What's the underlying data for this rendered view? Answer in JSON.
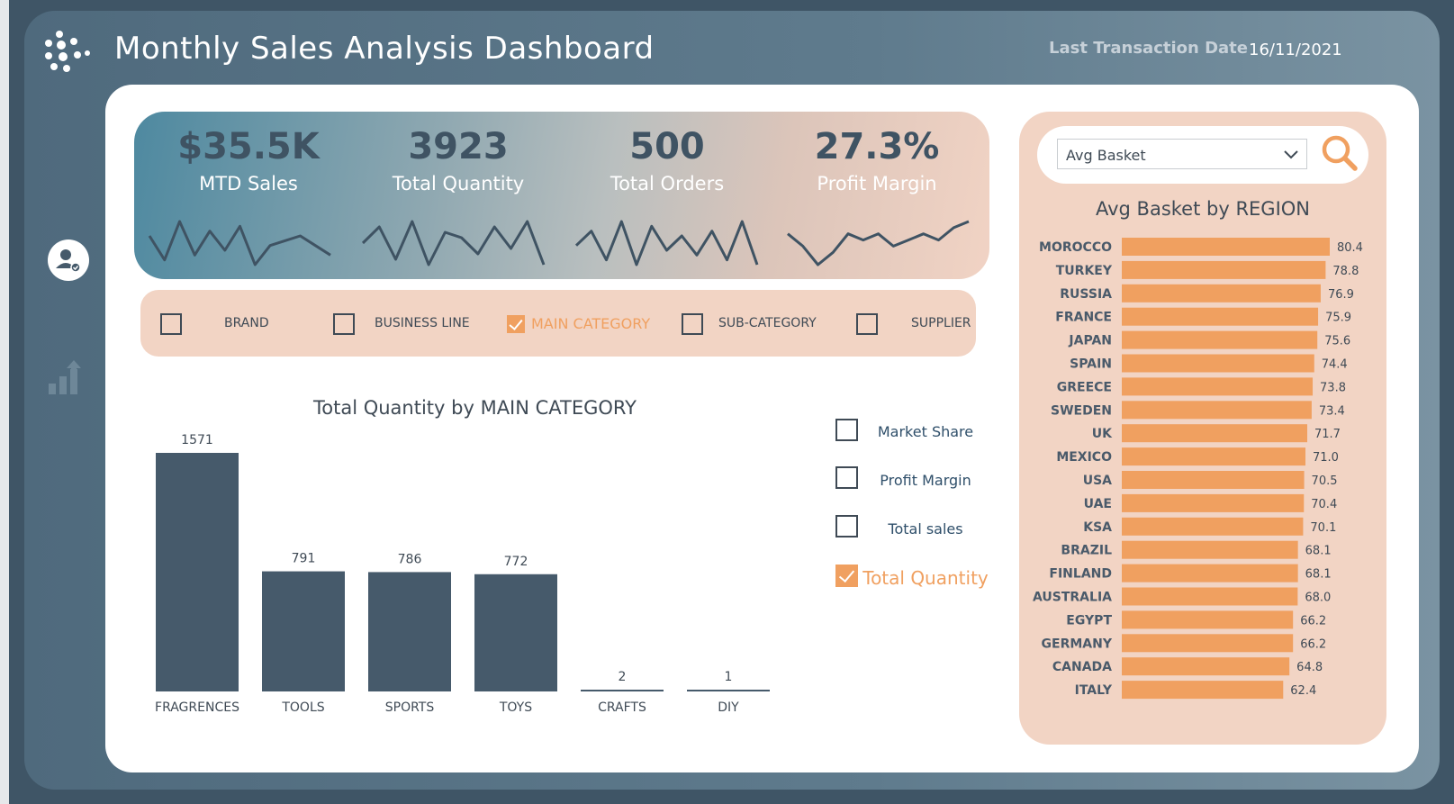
{
  "header": {
    "title": "Monthly Sales Analysis Dashboard",
    "last_transaction_label": "Last Transaction Date",
    "last_transaction_value": "16/11/2021"
  },
  "kpis": [
    {
      "value": "$35.5K",
      "label": "MTD Sales",
      "spark": [
        6,
        1,
        9,
        2,
        7,
        3,
        8,
        0,
        4,
        5,
        6,
        4,
        2
      ]
    },
    {
      "value": "3923",
      "label": "Total Quantity",
      "spark": [
        5,
        8,
        2,
        9,
        1,
        7,
        6,
        3,
        8,
        4,
        9,
        1
      ]
    },
    {
      "value": "500",
      "label": "Total Orders",
      "spark": [
        4,
        7,
        1,
        9,
        0,
        8,
        3,
        6,
        2,
        7,
        1,
        9,
        0
      ]
    },
    {
      "value": "27.3%",
      "label": "Profit Margin",
      "spark": [
        6,
        4,
        1,
        3,
        6,
        5,
        6,
        4,
        5,
        6,
        5,
        7,
        8
      ]
    }
  ],
  "filters": [
    {
      "label": "BRAND",
      "checked": false
    },
    {
      "label": "BUSINESS LINE",
      "checked": false
    },
    {
      "label": "MAIN CATEGORY",
      "checked": true
    },
    {
      "label": "SUB-CATEGORY",
      "checked": false
    },
    {
      "label": "SUPPLIER",
      "checked": false
    }
  ],
  "measures": [
    {
      "label": "Market Share",
      "checked": false
    },
    {
      "label": "Profit Margin",
      "checked": false
    },
    {
      "label": "Total sales",
      "checked": false
    },
    {
      "label": "Total Quantity",
      "checked": true
    }
  ],
  "search": {
    "selected": "Avg Basket"
  },
  "colors": {
    "accent": "#f0a060",
    "bar_dark": "#465a6b",
    "panel": "#f2d4c4",
    "text": "#3f4a55"
  },
  "chart_data": [
    {
      "type": "bar",
      "title": "Total Quantity by MAIN CATEGORY",
      "categories": [
        "FRAGRENCES",
        "TOOLS",
        "SPORTS",
        "TOYS",
        "CRAFTS",
        "DIY"
      ],
      "values": [
        1571,
        791,
        786,
        772,
        2,
        1
      ],
      "ylim": [
        0,
        1571
      ],
      "grid": false
    },
    {
      "type": "bar",
      "orientation": "horizontal",
      "title": "Avg Basket by REGION",
      "categories": [
        "MOROCCO",
        "TURKEY",
        "RUSSIA",
        "FRANCE",
        "JAPAN",
        "SPAIN",
        "GREECE",
        "SWEDEN",
        "UK",
        "MEXICO",
        "USA",
        "UAE",
        "KSA",
        "BRAZIL",
        "FINLAND",
        "AUSTRALIA",
        "EGYPT",
        "GERMANY",
        "CANADA",
        "ITALY"
      ],
      "values": [
        80.4,
        78.8,
        76.9,
        75.9,
        75.6,
        74.4,
        73.8,
        73.4,
        71.7,
        71.0,
        70.5,
        70.4,
        70.1,
        68.1,
        68.1,
        68.0,
        66.2,
        66.2,
        64.8,
        62.4
      ],
      "value_labels": [
        "80.4",
        "78.8",
        "76.9",
        "75.9",
        "75.6",
        "74.4",
        "73.8",
        "73.4",
        "71.7",
        "71.0",
        "70.5",
        "70.4",
        "70.1",
        "68.1",
        "68.1",
        "68.0",
        "66.2",
        "66.2",
        "64.8",
        "62.4"
      ],
      "xlim": [
        0,
        80.4
      ],
      "grid": false
    }
  ]
}
